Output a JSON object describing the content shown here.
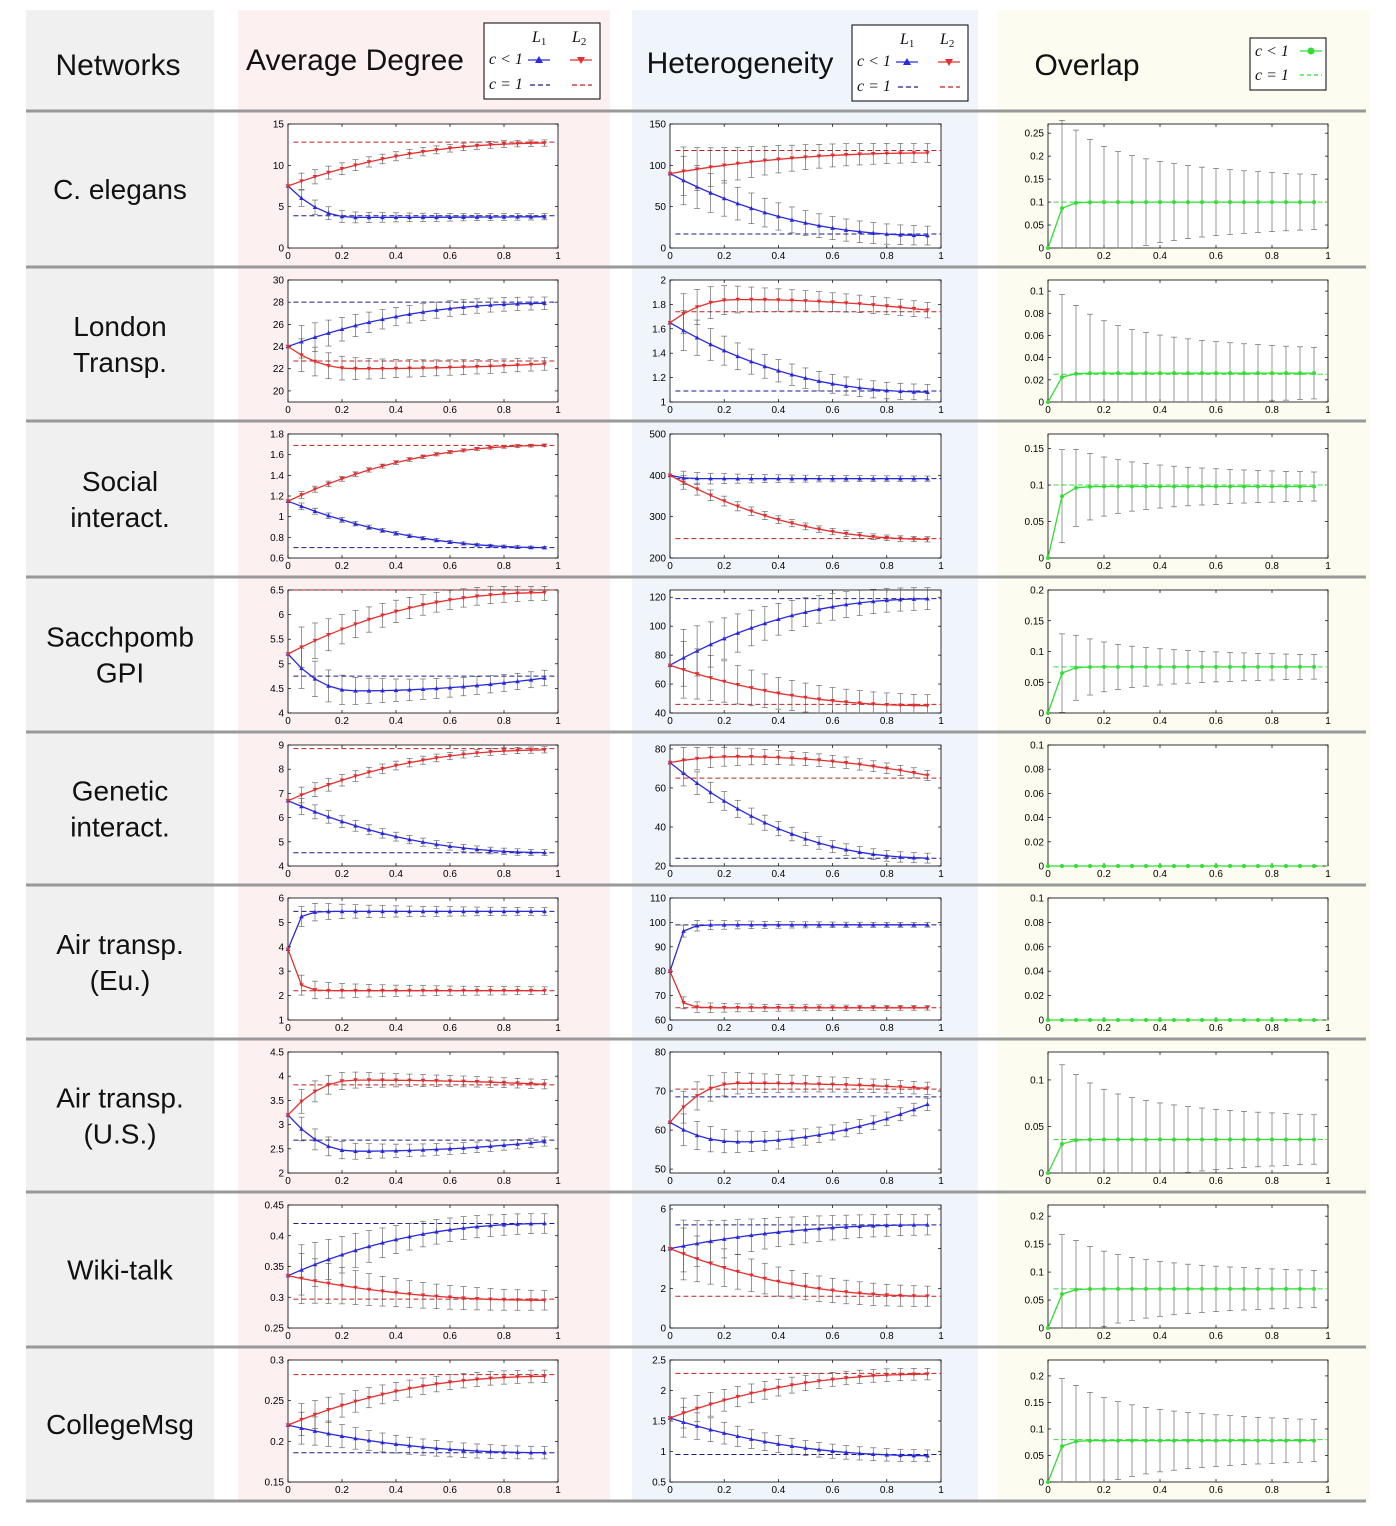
{
  "headers": {
    "networks": "Networks",
    "avg_degree": "Average Degree",
    "heterogeneity": "Heterogeneity",
    "overlap": "Overlap"
  },
  "legend": {
    "layer1": "L",
    "layer1_sub": "1",
    "layer2": "L",
    "layer2_sub": "2",
    "c_less": "c < 1",
    "c_equal": "c = 1"
  },
  "colors": {
    "layer1": "#2a2adc",
    "layer2": "#e23030",
    "overlap": "#33dd33",
    "networks_bg": "#f0f0f0",
    "degree_bg": "#fcf0f0",
    "heterogeneity_bg": "#eff5fb",
    "overlap_bg": "#fcfcf0"
  },
  "chart_data": [
    {
      "network": "C. elegans",
      "label_lines": [
        "C. elegans"
      ],
      "degree": {
        "type": "line",
        "ylim": [
          0,
          15
        ],
        "yticks": [
          "0",
          "5",
          "10",
          "15"
        ],
        "l1": {
          "start": 7.5,
          "end": 3.8,
          "shape": "dip",
          "ext": 3.7
        },
        "l2": {
          "start": 7.5,
          "end": 12.7,
          "shape": "rise"
        },
        "l1_ref": 3.9,
        "l2_ref": 12.8,
        "err": 0.6
      },
      "hetero": {
        "type": "line",
        "ylim": [
          0,
          150
        ],
        "yticks": [
          "0",
          "50",
          "100",
          "150"
        ],
        "l1": {
          "start": 90,
          "end": 15,
          "shape": "fall"
        },
        "l2": {
          "start": 90,
          "end": 115,
          "shape": "rise"
        },
        "l1_ref": 17,
        "l2_ref": 118,
        "err": 18
      },
      "overlap": {
        "type": "line",
        "ylim": [
          0,
          0.27
        ],
        "yticks": [
          "0",
          "0.05",
          "0.1",
          "0.15",
          "0.2",
          "0.25"
        ],
        "start": 0,
        "end": 0.1,
        "ref": 0.1,
        "err": 0.09
      }
    },
    {
      "network": "London Transp.",
      "label_lines": [
        "London",
        "Transp."
      ],
      "degree": {
        "type": "line",
        "ylim": [
          19,
          30
        ],
        "yticks": [
          "20",
          "22",
          "24",
          "26",
          "28",
          "30"
        ],
        "l1": {
          "start": 24,
          "end": 27.9,
          "shape": "rise"
        },
        "l2": {
          "start": 24,
          "end": 22.5,
          "shape": "dip",
          "ext": 22
        },
        "l1_ref": 28,
        "l2_ref": 22.7,
        "err": 0.9
      },
      "hetero": {
        "type": "line",
        "ylim": [
          1,
          2
        ],
        "yticks": [
          "1",
          "1.2",
          "1.4",
          "1.6",
          "1.8",
          "2"
        ],
        "l1": {
          "start": 1.65,
          "end": 1.08,
          "shape": "fall"
        },
        "l2": {
          "start": 1.65,
          "end": 1.74,
          "shape": "hump",
          "ext": 1.84
        },
        "l1_ref": 1.09,
        "l2_ref": 1.74,
        "err": 0.1
      },
      "overlap": {
        "type": "line",
        "ylim": [
          0,
          0.11
        ],
        "yticks": [
          "0",
          "0.02",
          "0.04",
          "0.06",
          "0.08",
          "0.1"
        ],
        "start": 0,
        "end": 0.026,
        "ref": 0.025,
        "err": 0.035
      }
    },
    {
      "network": "Social interact.",
      "label_lines": [
        "Social",
        "interact."
      ],
      "degree": {
        "type": "line",
        "ylim": [
          0.6,
          1.8
        ],
        "yticks": [
          "0.6",
          "0.8",
          "1",
          "1.2",
          "1.4",
          "1.6",
          "1.8"
        ],
        "l1": {
          "start": 1.15,
          "end": 0.7,
          "shape": "fall"
        },
        "l2": {
          "start": 1.15,
          "end": 1.69,
          "shape": "rise"
        },
        "l1_ref": 0.7,
        "l2_ref": 1.69,
        "err": 0.02
      },
      "hetero": {
        "type": "line",
        "ylim": [
          200,
          500
        ],
        "yticks": [
          "200",
          "300",
          "400",
          "500"
        ],
        "l1": {
          "start": 400,
          "end": 392,
          "shape": "flat"
        },
        "l2": {
          "start": 400,
          "end": 245,
          "shape": "fall"
        },
        "l1_ref": 392,
        "l2_ref": 247,
        "err": 10
      },
      "overlap": {
        "type": "line",
        "ylim": [
          0,
          0.17
        ],
        "yticks": [
          "0",
          "0.05",
          "0.1",
          "0.15"
        ],
        "start": 0,
        "end": 0.098,
        "ref": 0.1,
        "err": 0.03
      }
    },
    {
      "network": "Sacchpomb GPI",
      "label_lines": [
        "Sacchpomb",
        "GPI"
      ],
      "degree": {
        "type": "line",
        "ylim": [
          4,
          6.5
        ],
        "yticks": [
          "4",
          "4.5",
          "5",
          "5.5",
          "6",
          "6.5"
        ],
        "l1": {
          "start": 5.2,
          "end": 4.75,
          "shape": "dip",
          "ext": 4.45
        },
        "l2": {
          "start": 5.2,
          "end": 6.45,
          "shape": "rise"
        },
        "l1_ref": 4.75,
        "l2_ref": 6.5,
        "err": 0.25
      },
      "hetero": {
        "type": "line",
        "ylim": [
          40,
          125
        ],
        "yticks": [
          "40",
          "60",
          "80",
          "100",
          "120"
        ],
        "l1": {
          "start": 73,
          "end": 119,
          "shape": "rise"
        },
        "l2": {
          "start": 73,
          "end": 45,
          "shape": "fall"
        },
        "l1_ref": 119,
        "l2_ref": 46,
        "err": 12
      },
      "overlap": {
        "type": "line",
        "ylim": [
          0,
          0.2
        ],
        "yticks": [
          "0",
          "0.05",
          "0.1",
          "0.15",
          "0.2"
        ],
        "start": 0,
        "end": 0.075,
        "ref": 0.075,
        "err": 0.03
      }
    },
    {
      "network": "Genetic interact.",
      "label_lines": [
        "Genetic",
        "interact."
      ],
      "degree": {
        "type": "line",
        "ylim": [
          4,
          9
        ],
        "yticks": [
          "4",
          "5",
          "6",
          "7",
          "8",
          "9"
        ],
        "l1": {
          "start": 6.7,
          "end": 4.55,
          "shape": "fall"
        },
        "l2": {
          "start": 6.7,
          "end": 8.8,
          "shape": "rise"
        },
        "l1_ref": 4.55,
        "l2_ref": 8.85,
        "err": 0.2
      },
      "hetero": {
        "type": "line",
        "ylim": [
          20,
          82
        ],
        "yticks": [
          "20",
          "40",
          "60",
          "80"
        ],
        "l1": {
          "start": 73,
          "end": 24,
          "shape": "fall"
        },
        "l2": {
          "start": 73,
          "end": 65,
          "shape": "hump",
          "ext": 76
        },
        "l1_ref": 24,
        "l2_ref": 65,
        "err": 4
      },
      "overlap": {
        "type": "line",
        "ylim": [
          0,
          0.1
        ],
        "yticks": [
          "0",
          "0.02",
          "0.04",
          "0.06",
          "0.08",
          "0.1"
        ],
        "start": 0,
        "end": 0,
        "ref": 0,
        "err": 0
      }
    },
    {
      "network": "Air transp. (Eu.)",
      "label_lines": [
        "Air transp.",
        "(Eu.)"
      ],
      "degree": {
        "type": "line",
        "ylim": [
          1,
          6
        ],
        "yticks": [
          "1",
          "2",
          "3",
          "4",
          "5",
          "6"
        ],
        "l1": {
          "start": 3.9,
          "end": 5.45,
          "shape": "fast"
        },
        "l2": {
          "start": 3.9,
          "end": 2.2,
          "shape": "fast"
        },
        "l1_ref": 5.45,
        "l2_ref": 2.2,
        "err": 0.25
      },
      "hetero": {
        "type": "line",
        "ylim": [
          60,
          110
        ],
        "yticks": [
          "60",
          "70",
          "80",
          "90",
          "100",
          "110"
        ],
        "l1": {
          "start": 80,
          "end": 99,
          "shape": "fast"
        },
        "l2": {
          "start": 80,
          "end": 65,
          "shape": "fast"
        },
        "l1_ref": 99,
        "l2_ref": 65,
        "err": 1.5
      },
      "overlap": {
        "type": "line",
        "ylim": [
          0,
          0.1
        ],
        "yticks": [
          "0",
          "0.02",
          "0.04",
          "0.06",
          "0.08",
          "0.1"
        ],
        "start": 0,
        "end": 0,
        "ref": 0,
        "err": 0
      }
    },
    {
      "network": "Air transp. (U.S.)",
      "label_lines": [
        "Air transp.",
        "(U.S.)"
      ],
      "degree": {
        "type": "line",
        "ylim": [
          2,
          4.5
        ],
        "yticks": [
          "2",
          "2.5",
          "3",
          "3.5",
          "4",
          "4.5"
        ],
        "l1": {
          "start": 3.2,
          "end": 2.68,
          "shape": "dip",
          "ext": 2.45
        },
        "l2": {
          "start": 3.2,
          "end": 3.82,
          "shape": "hump",
          "ext": 3.92
        },
        "l1_ref": 2.68,
        "l2_ref": 3.82,
        "err": 0.15
      },
      "hetero": {
        "type": "line",
        "ylim": [
          49,
          80
        ],
        "yticks": [
          "50",
          "60",
          "70",
          "80"
        ],
        "l1": {
          "start": 62,
          "end": 68,
          "shape": "dip",
          "ext": 57
        },
        "l2": {
          "start": 62,
          "end": 70.5,
          "shape": "hump",
          "ext": 72
        },
        "l1_ref": 68.5,
        "l2_ref": 70.5,
        "err": 2.5
      },
      "overlap": {
        "type": "line",
        "ylim": [
          0,
          0.13
        ],
        "yticks": [
          "0",
          "0.05",
          "0.1"
        ],
        "start": 0,
        "end": 0.036,
        "ref": 0.036,
        "err": 0.04
      }
    },
    {
      "network": "Wiki-talk",
      "label_lines": [
        "Wiki-talk"
      ],
      "degree": {
        "type": "line",
        "ylim": [
          0.25,
          0.45
        ],
        "yticks": [
          "0.25",
          "0.3",
          "0.35",
          "0.4",
          "0.45"
        ],
        "l1": {
          "start": 0.335,
          "end": 0.42,
          "shape": "rise"
        },
        "l2": {
          "start": 0.335,
          "end": 0.295,
          "shape": "fall"
        },
        "l1_ref": 0.42,
        "l2_ref": 0.297,
        "err": 0.025
      },
      "hetero": {
        "type": "line",
        "ylim": [
          0,
          6.2
        ],
        "yticks": [
          "0",
          "2",
          "4",
          "6"
        ],
        "l1": {
          "start": 4,
          "end": 5.2,
          "shape": "rise"
        },
        "l2": {
          "start": 4,
          "end": 1.6,
          "shape": "fall"
        },
        "l1_ref": 5.2,
        "l2_ref": 1.6,
        "err": 0.8
      },
      "overlap": {
        "type": "line",
        "ylim": [
          0,
          0.22
        ],
        "yticks": [
          "0",
          "0.05",
          "0.1",
          "0.15",
          "0.2"
        ],
        "start": 0,
        "end": 0.07,
        "ref": 0.07,
        "err": 0.05
      }
    },
    {
      "network": "CollegeMsg",
      "label_lines": [
        "CollegeMsg"
      ],
      "degree": {
        "type": "line",
        "ylim": [
          0.15,
          0.3
        ],
        "yticks": [
          "0.15",
          "0.2",
          "0.25",
          "0.3"
        ],
        "l1": {
          "start": 0.22,
          "end": 0.186,
          "shape": "fall"
        },
        "l2": {
          "start": 0.22,
          "end": 0.28,
          "shape": "rise"
        },
        "l1_ref": 0.186,
        "l2_ref": 0.282,
        "err": 0.012
      },
      "hetero": {
        "type": "line",
        "ylim": [
          0.5,
          2.5
        ],
        "yticks": [
          "0.5",
          "1",
          "1.5",
          "2",
          "2.5"
        ],
        "l1": {
          "start": 1.55,
          "end": 0.93,
          "shape": "fall"
        },
        "l2": {
          "start": 1.55,
          "end": 2.27,
          "shape": "rise"
        },
        "l1_ref": 0.95,
        "l2_ref": 2.28,
        "err": 0.15
      },
      "overlap": {
        "type": "line",
        "ylim": [
          0,
          0.23
        ],
        "yticks": [
          "0",
          "0.05",
          "0.1",
          "0.15",
          "0.2"
        ],
        "start": 0,
        "end": 0.078,
        "ref": 0.08,
        "err": 0.06
      }
    }
  ],
  "xticks": [
    "0",
    "0.2",
    "0.4",
    "0.6",
    "0.8",
    "1"
  ]
}
